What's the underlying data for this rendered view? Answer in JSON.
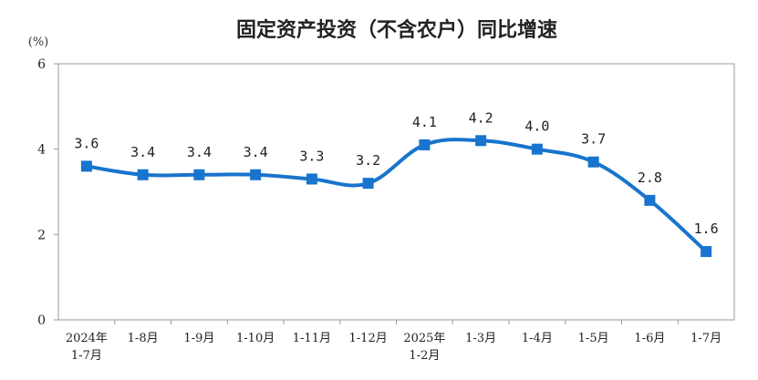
{
  "chart_data": {
    "type": "line",
    "title": "固定资产投资（不含农户）同比增速",
    "unit_label": "(%)",
    "categories": [
      [
        "2024年",
        "1-7月"
      ],
      [
        "1-8月"
      ],
      [
        "1-9月"
      ],
      [
        "1-10月"
      ],
      [
        "1-11月"
      ],
      [
        "1-12月"
      ],
      [
        "2025年",
        "1-2月"
      ],
      [
        "1-3月"
      ],
      [
        "1-4月"
      ],
      [
        "1-5月"
      ],
      [
        "1-6月"
      ],
      [
        "1-7月"
      ]
    ],
    "series": [
      {
        "values": [
          3.6,
          3.4,
          3.4,
          3.4,
          3.3,
          3.2,
          4.1,
          4.2,
          4.0,
          3.7,
          2.8,
          1.6
        ],
        "labels": [
          "3.6",
          "3.4",
          "3.4",
          "3.4",
          "3.3",
          "3.2",
          "4.1",
          "4.2",
          "4.0",
          "3.7",
          "2.8",
          "1.6"
        ],
        "color": "#1874cd"
      }
    ],
    "ylim": [
      0,
      6
    ],
    "yticks": [
      0,
      2,
      4,
      6
    ],
    "grid": false,
    "legend": "none"
  }
}
